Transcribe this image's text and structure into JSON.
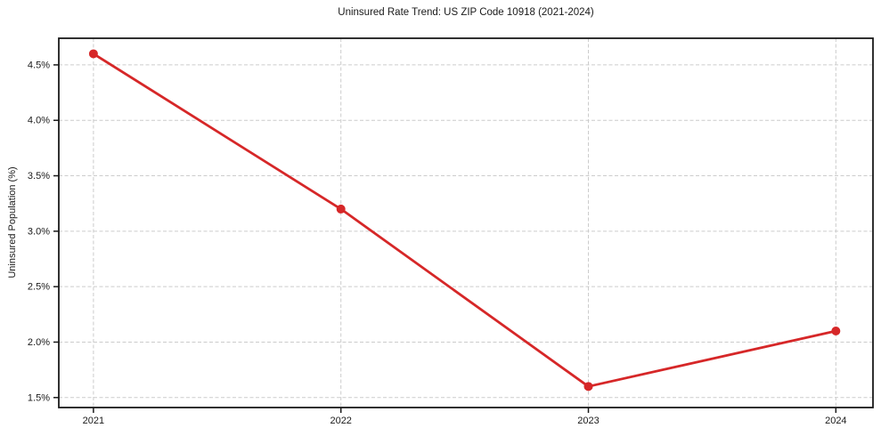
{
  "chart_data": {
    "type": "line",
    "title": "Uninsured Rate Trend: US ZIP Code 10918 (2021-2024)",
    "xlabel": "",
    "ylabel": "Uninsured Population (%)",
    "x": [
      2021,
      2022,
      2023,
      2024
    ],
    "values": [
      4.6,
      3.2,
      1.6,
      2.1
    ],
    "xticks": [
      2021,
      2022,
      2023,
      2024
    ],
    "xtick_labels": [
      "2021",
      "2022",
      "2023",
      "2024"
    ],
    "yticks": [
      1.5,
      2.0,
      2.5,
      3.0,
      3.5,
      4.0,
      4.5
    ],
    "ytick_labels": [
      "1.5%",
      "2.0%",
      "2.5%",
      "3.0%",
      "3.5%",
      "4.0%",
      "4.5%"
    ],
    "xlim": [
      2020.86,
      2024.15
    ],
    "ylim": [
      1.41,
      4.74
    ],
    "grid": true,
    "grid_style": "dashed",
    "legend": "none",
    "line_color": "#d62728",
    "marker": "circle",
    "grid_color": "#cccccc",
    "spine_color": "#1a1a1a",
    "background_color": "#ffffff"
  }
}
